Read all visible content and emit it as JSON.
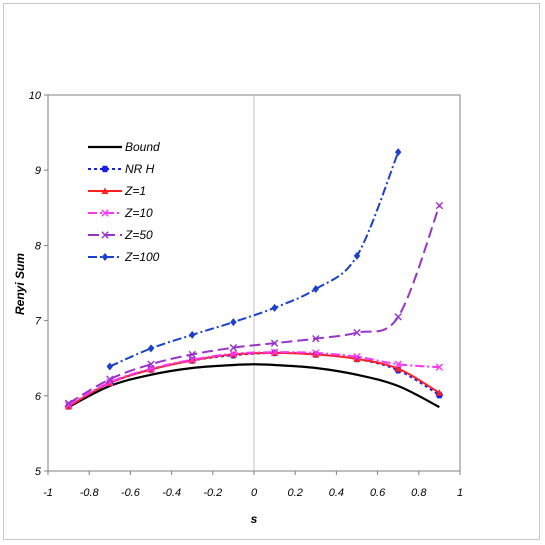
{
  "chart_data": {
    "type": "line",
    "title": "",
    "xlabel": "s",
    "ylabel": "Renyi Sum",
    "xlim": [
      -1,
      1
    ],
    "ylim": [
      5,
      10
    ],
    "x_ticks": [
      -1,
      -0.8,
      -0.6,
      -0.4,
      -0.2,
      0,
      0.2,
      0.4,
      0.6,
      0.8,
      1
    ],
    "x_tick_labels": [
      "-1",
      "-0.8",
      "-0.6",
      "-0.4",
      "-0.2",
      "0",
      "0.2",
      "0.4",
      "0.6",
      "0.8",
      "1"
    ],
    "y_ticks": [
      5,
      6,
      7,
      8,
      9,
      10
    ],
    "y_tick_labels": [
      "5",
      "6",
      "7",
      "8",
      "9",
      "10"
    ],
    "grid": false,
    "zero_line": true,
    "legend_position": "top-left",
    "series": [
      {
        "name": "Bound",
        "color": "#000000",
        "dash": "solid",
        "marker": "none",
        "x": [
          -0.9,
          -0.7,
          -0.5,
          -0.3,
          -0.1,
          0,
          0.1,
          0.3,
          0.5,
          0.7,
          0.9
        ],
        "y": [
          5.85,
          6.13,
          6.28,
          6.37,
          6.41,
          6.42,
          6.41,
          6.37,
          6.28,
          6.13,
          5.85
        ]
      },
      {
        "name": "NR H",
        "color": "#1a1aff",
        "dash": "dot",
        "marker": "hexagon",
        "x": [
          -0.9,
          -0.7,
          -0.5,
          -0.3,
          -0.1,
          0.1,
          0.3,
          0.5,
          0.7,
          0.9
        ],
        "y": [
          5.86,
          6.17,
          6.35,
          6.47,
          6.54,
          6.57,
          6.55,
          6.49,
          6.34,
          6.01
        ]
      },
      {
        "name": "Z=1",
        "color": "#ff2020",
        "dash": "solid",
        "marker": "triangle",
        "x": [
          -0.9,
          -0.7,
          -0.5,
          -0.3,
          -0.1,
          0.1,
          0.3,
          0.5,
          0.7,
          0.9
        ],
        "y": [
          5.86,
          6.17,
          6.35,
          6.47,
          6.55,
          6.57,
          6.55,
          6.49,
          6.36,
          6.04
        ]
      },
      {
        "name": "Z=10",
        "color": "#ff33ff",
        "dash": "dashdot",
        "marker": "x",
        "x": [
          -0.9,
          -0.7,
          -0.5,
          -0.3,
          -0.1,
          0.1,
          0.3,
          0.5,
          0.7,
          0.9
        ],
        "y": [
          5.88,
          6.18,
          6.36,
          6.48,
          6.56,
          6.58,
          6.57,
          6.52,
          6.42,
          6.38
        ]
      },
      {
        "name": "Z=50",
        "color": "#9933cc",
        "dash": "longdash",
        "marker": "x",
        "x": [
          -0.9,
          -0.7,
          -0.5,
          -0.3,
          -0.1,
          0.1,
          0.3,
          0.5,
          0.7,
          0.9
        ],
        "y": [
          5.9,
          6.22,
          6.42,
          6.55,
          6.64,
          6.7,
          6.76,
          6.84,
          7.05,
          8.53
        ]
      },
      {
        "name": "Z=100",
        "color": "#1a3fd6",
        "dash": "dashdot",
        "marker": "diamond",
        "x": [
          -0.7,
          -0.5,
          -0.3,
          -0.1,
          0.1,
          0.3,
          0.5,
          0.7
        ],
        "y": [
          6.39,
          6.63,
          6.81,
          6.98,
          7.17,
          7.42,
          7.86,
          9.24
        ]
      }
    ]
  }
}
